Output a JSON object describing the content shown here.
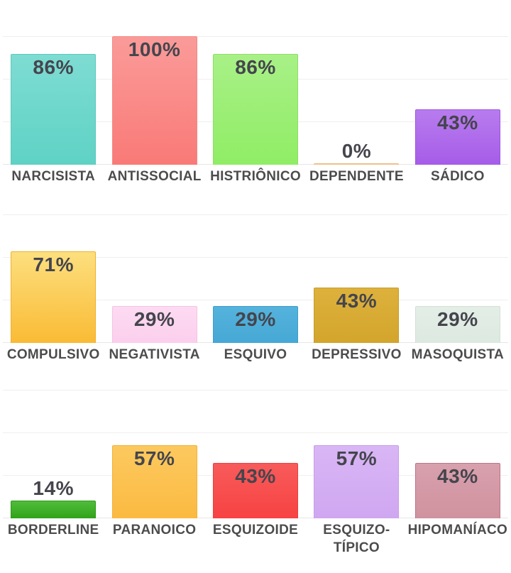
{
  "page": {
    "background": "#ffffff",
    "description_values_suffix": "%"
  },
  "text_style": {
    "value_color": "#45454d",
    "category_color": "#4c4c4c"
  },
  "grid": {
    "line_color": "#f1eded",
    "baseline_color": "#e8e6e6",
    "divisions": 3
  },
  "chart_data": [
    {
      "type": "bar",
      "title": "",
      "xlabel": "",
      "ylabel": "",
      "ylim": [
        0,
        100
      ],
      "grid": true,
      "value_suffix": "%",
      "categories": [
        "NARCISISTA",
        "ANTISSOCIAL",
        "HISTRIÔNICO",
        "DEPENDENTE",
        "SÁDICO"
      ],
      "values": [
        86,
        100,
        86,
        0,
        43
      ],
      "value_labels": [
        "86%",
        "100%",
        "86%",
        "0%",
        "43%"
      ],
      "bar_colors": [
        {
          "top": "#7EDCD3",
          "bottom": "#5FD2C5",
          "border": "#5BC8BC"
        },
        {
          "top": "#FA9B99",
          "bottom": "#F97A77",
          "border": "#F28886"
        },
        {
          "top": "#A8F087",
          "bottom": "#90ED65",
          "border": "#8CE060"
        },
        {
          "top": "#F6CFA0",
          "bottom": "#F0C08A",
          "border": "#EBB87E"
        },
        {
          "top": "#B87CEE",
          "bottom": "#A65CE8",
          "border": "#9E54E0"
        }
      ]
    },
    {
      "type": "bar",
      "title": "",
      "xlabel": "",
      "ylabel": "",
      "ylim": [
        0,
        100
      ],
      "grid": true,
      "value_suffix": "%",
      "categories": [
        "COMPULSIVO",
        "NEGATIVISTA",
        "ESQUIVO",
        "DEPRESSIVO",
        "MASOQUISTA"
      ],
      "values": [
        71,
        29,
        29,
        43,
        29
      ],
      "value_labels": [
        "71%",
        "29%",
        "29%",
        "43%",
        "29%"
      ],
      "bar_colors": [
        {
          "top": "#FCDF7E",
          "bottom": "#FABB35",
          "border": "#F2B02C"
        },
        {
          "top": "#FDDBF2",
          "bottom": "#FBCFED",
          "border": "#F5C3E4"
        },
        {
          "top": "#55B3DC",
          "bottom": "#46A8D5",
          "border": "#409ECB"
        },
        {
          "top": "#DDB13C",
          "bottom": "#D3A52C",
          "border": "#C89C28"
        },
        {
          "top": "#E3EEE7",
          "bottom": "#DCE9E0",
          "border": "#D2E0D6"
        }
      ]
    },
    {
      "type": "bar",
      "title": "",
      "xlabel": "",
      "ylabel": "",
      "ylim": [
        0,
        100
      ],
      "grid": true,
      "value_suffix": "%",
      "categories": [
        "BORDERLINE",
        "PARANOICO",
        "ESQUIZOIDE",
        "ESQUIZO-\nTÍPICO",
        "HIPOMANÍACO"
      ],
      "values": [
        14,
        57,
        43,
        57,
        43
      ],
      "value_labels": [
        "14%",
        "57%",
        "43%",
        "57%",
        "43%"
      ],
      "bar_colors": [
        {
          "top": "#51BC3C",
          "bottom": "#2FA318",
          "border": "#2B9A15"
        },
        {
          "top": "#FCC95F",
          "bottom": "#FBBA41",
          "border": "#F3B039"
        },
        {
          "top": "#F85B5B",
          "bottom": "#F74242",
          "border": "#EF3C3C"
        },
        {
          "top": "#D9B6F5",
          "bottom": "#CFA7F1",
          "border": "#C79DEB"
        },
        {
          "top": "#D8A0AD",
          "bottom": "#D0929F",
          "border": "#BC7487"
        }
      ]
    }
  ]
}
